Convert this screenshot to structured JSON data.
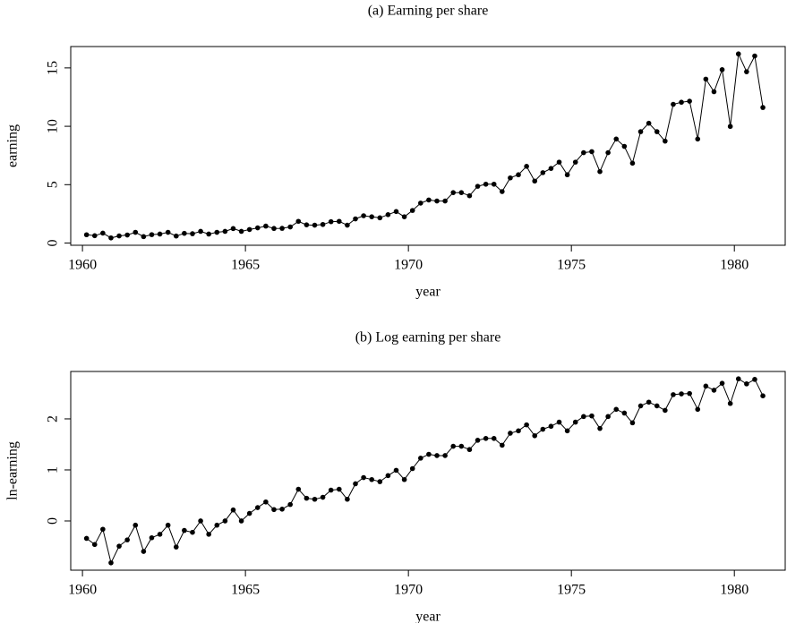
{
  "chart_data": [
    {
      "type": "line",
      "title": "(a) Earning per share",
      "x_label": "year",
      "y_label": "earning",
      "x": [
        1960.125,
        1960.375,
        1960.625,
        1960.875,
        1961.125,
        1961.375,
        1961.625,
        1961.875,
        1962.125,
        1962.375,
        1962.625,
        1962.875,
        1963.125,
        1963.375,
        1963.625,
        1963.875,
        1964.125,
        1964.375,
        1964.625,
        1964.875,
        1965.125,
        1965.375,
        1965.625,
        1965.875,
        1966.125,
        1966.375,
        1966.625,
        1966.875,
        1967.125,
        1967.375,
        1967.625,
        1967.875,
        1968.125,
        1968.375,
        1968.625,
        1968.875,
        1969.125,
        1969.375,
        1969.625,
        1969.875,
        1970.125,
        1970.375,
        1970.625,
        1970.875,
        1971.125,
        1971.375,
        1971.625,
        1971.875,
        1972.125,
        1972.375,
        1972.625,
        1972.875,
        1973.125,
        1973.375,
        1973.625,
        1973.875,
        1974.125,
        1974.375,
        1974.625,
        1974.875,
        1975.125,
        1975.375,
        1975.625,
        1975.875,
        1976.125,
        1976.375,
        1976.625,
        1976.875,
        1977.125,
        1977.375,
        1977.625,
        1977.875,
        1978.125,
        1978.375,
        1978.625,
        1978.875,
        1979.125,
        1979.375,
        1979.625,
        1979.875,
        1980.125,
        1980.375,
        1980.625,
        1980.875
      ],
      "series": [
        {
          "name": "earning",
          "color": "#000000",
          "values": [
            0.71,
            0.63,
            0.85,
            0.44,
            0.61,
            0.69,
            0.92,
            0.55,
            0.72,
            0.77,
            0.92,
            0.6,
            0.83,
            0.8,
            1.0,
            0.77,
            0.92,
            1.0,
            1.24,
            1.0,
            1.16,
            1.3,
            1.45,
            1.25,
            1.26,
            1.38,
            1.86,
            1.56,
            1.53,
            1.59,
            1.83,
            1.86,
            1.53,
            2.07,
            2.34,
            2.25,
            2.16,
            2.43,
            2.7,
            2.25,
            2.79,
            3.42,
            3.69,
            3.6,
            3.6,
            4.32,
            4.32,
            4.05,
            4.86,
            5.04,
            5.04,
            4.41,
            5.58,
            5.85,
            6.57,
            5.31,
            6.03,
            6.39,
            6.93,
            5.85,
            6.93,
            7.74,
            7.83,
            6.12,
            7.74,
            8.91,
            8.28,
            6.84,
            9.54,
            10.26,
            9.54,
            8.73,
            11.88,
            12.06,
            12.15,
            8.91,
            14.04,
            12.96,
            14.85,
            9.99,
            16.2,
            14.67,
            16.02,
            11.61
          ]
        }
      ],
      "xlim": [
        1959.64,
        1981.56
      ],
      "xticks": [
        1960,
        1965,
        1970,
        1975,
        1980
      ],
      "ylim": [
        -0.19,
        16.83
      ],
      "yticks": [
        0,
        5,
        10,
        15
      ]
    },
    {
      "type": "line",
      "title": "(b) Log earning per share",
      "x_label": "year",
      "y_label": "ln-earning",
      "x": [
        1960.125,
        1960.375,
        1960.625,
        1960.875,
        1961.125,
        1961.375,
        1961.625,
        1961.875,
        1962.125,
        1962.375,
        1962.625,
        1962.875,
        1963.125,
        1963.375,
        1963.625,
        1963.875,
        1964.125,
        1964.375,
        1964.625,
        1964.875,
        1965.125,
        1965.375,
        1965.625,
        1965.875,
        1966.125,
        1966.375,
        1966.625,
        1966.875,
        1967.125,
        1967.375,
        1967.625,
        1967.875,
        1968.125,
        1968.375,
        1968.625,
        1968.875,
        1969.125,
        1969.375,
        1969.625,
        1969.875,
        1970.125,
        1970.375,
        1970.625,
        1970.875,
        1971.125,
        1971.375,
        1971.625,
        1971.875,
        1972.125,
        1972.375,
        1972.625,
        1972.875,
        1973.125,
        1973.375,
        1973.625,
        1973.875,
        1974.125,
        1974.375,
        1974.625,
        1974.875,
        1975.125,
        1975.375,
        1975.625,
        1975.875,
        1976.125,
        1976.375,
        1976.625,
        1976.875,
        1977.125,
        1977.375,
        1977.625,
        1977.875,
        1978.125,
        1978.375,
        1978.625,
        1978.875,
        1979.125,
        1979.375,
        1979.625,
        1979.875,
        1980.125,
        1980.375,
        1980.625,
        1980.875
      ],
      "series": [
        {
          "name": "ln-earning",
          "color": "#000000",
          "values": [
            -0.342,
            -0.462,
            -0.163,
            -0.821,
            -0.494,
            -0.371,
            -0.083,
            -0.598,
            -0.329,
            -0.261,
            -0.083,
            -0.511,
            -0.186,
            -0.223,
            0,
            -0.261,
            -0.083,
            0,
            0.215,
            0,
            0.148,
            0.262,
            0.372,
            0.223,
            0.231,
            0.322,
            0.621,
            0.445,
            0.425,
            0.464,
            0.604,
            0.621,
            0.425,
            0.728,
            0.85,
            0.811,
            0.77,
            0.888,
            0.993,
            0.811,
            1.026,
            1.23,
            1.306,
            1.281,
            1.281,
            1.463,
            1.463,
            1.399,
            1.581,
            1.617,
            1.617,
            1.484,
            1.719,
            1.766,
            1.883,
            1.67,
            1.797,
            1.855,
            1.936,
            1.766,
            1.936,
            2.046,
            2.058,
            1.812,
            2.046,
            2.187,
            2.114,
            1.923,
            2.255,
            2.328,
            2.255,
            2.167,
            2.475,
            2.49,
            2.497,
            2.187,
            2.642,
            2.562,
            2.698,
            2.302,
            2.785,
            2.686,
            2.774,
            2.452
          ]
        }
      ],
      "xlim": [
        1959.64,
        1981.56
      ],
      "xticks": [
        1960,
        1965,
        1970,
        1975,
        1980
      ],
      "ylim": [
        -0.965,
        2.929
      ],
      "yticks": [
        0,
        1,
        2
      ]
    }
  ]
}
